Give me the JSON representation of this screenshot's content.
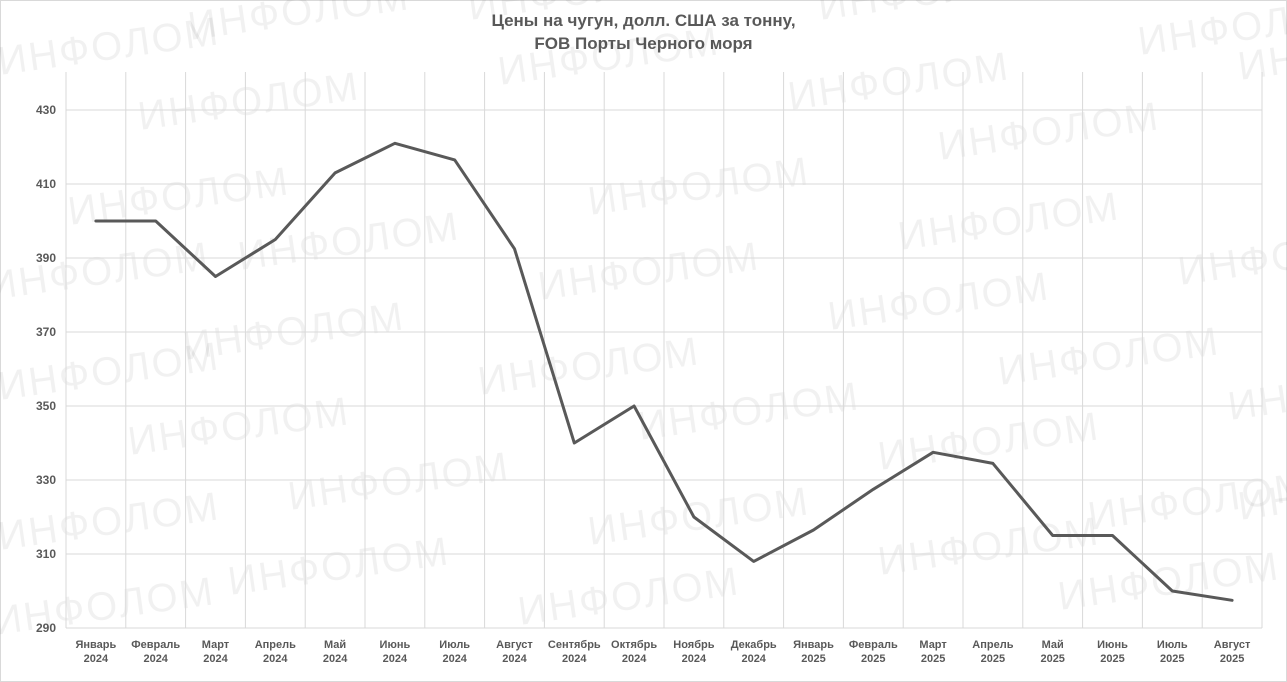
{
  "chart_data": {
    "type": "line",
    "title": "Цены на чугун, долл. США за тонну,",
    "subtitle": "FOB Порты Черного моря",
    "xlabel": "",
    "ylabel": "",
    "ylim": [
      290,
      435
    ],
    "yticks": [
      "430",
      "410",
      "390",
      "370",
      "350",
      "330",
      "310",
      "290"
    ],
    "grid": true,
    "categories": [
      [
        "Январь",
        "2024"
      ],
      [
        "Февраль",
        "2024"
      ],
      [
        "Март",
        "2024"
      ],
      [
        "Апрель",
        "2024"
      ],
      [
        "Май",
        "2024"
      ],
      [
        "Июнь",
        "2024"
      ],
      [
        "Июль",
        "2024"
      ],
      [
        "Август",
        "2024"
      ],
      [
        "Сентябрь",
        "2024"
      ],
      [
        "Октябрь",
        "2024"
      ],
      [
        "Ноябрь",
        "2024"
      ],
      [
        "Декабрь",
        "2024"
      ],
      [
        "Январь",
        "2025"
      ],
      [
        "Февраль",
        "2025"
      ],
      [
        "Март",
        "2025"
      ],
      [
        "Апрель",
        "2025"
      ],
      [
        "Май",
        "2025"
      ],
      [
        "Июнь",
        "2025"
      ],
      [
        "Июль",
        "2025"
      ],
      [
        "Август",
        "2025"
      ]
    ],
    "series": [
      {
        "color": "#595959",
        "values": [
          400,
          400,
          385,
          395,
          413,
          421,
          416.5,
          392.5,
          340,
          350,
          320,
          308,
          316.5,
          327.5,
          337.5,
          334.5,
          315,
          315,
          300,
          297.5
        ]
      }
    ]
  },
  "watermark": {
    "text": "ИНФОЛОМ",
    "color": "#000000"
  }
}
